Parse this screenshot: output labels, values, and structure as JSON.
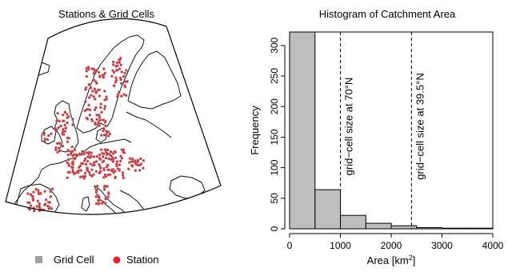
{
  "panels": {
    "map": {
      "title": "Stations & Grid Cells",
      "legend": [
        {
          "label": "Grid Cell",
          "color": "#9e9e9e",
          "marker": "square"
        },
        {
          "label": "Station",
          "color": "#e8202a",
          "marker": "circle"
        }
      ]
    }
  },
  "chart_data": {
    "type": "bar",
    "title": "Histogram of Catchment Area",
    "xlabel": "Area [km",
    "xlabel_sup": "2",
    "xlabel_tail": "]",
    "ylabel": "Frequency",
    "bin_edges": [
      0,
      500,
      1000,
      1500,
      2000,
      2500,
      3000,
      3500,
      4000
    ],
    "values": [
      322,
      64,
      22,
      9,
      5,
      2,
      1,
      1
    ],
    "xlim": [
      0,
      4000
    ],
    "ylim": [
      0,
      322
    ],
    "xticks": [
      0,
      1000,
      2000,
      3000,
      4000
    ],
    "yticks": [
      0,
      50,
      100,
      150,
      200,
      250,
      300
    ],
    "bar_color": "#bebebe",
    "grid": false,
    "annotations": [
      {
        "x": 1000,
        "label": "grid−cell size at 70°N"
      },
      {
        "x": 2400,
        "label": "grid−cell size at 39.5°N"
      }
    ]
  }
}
